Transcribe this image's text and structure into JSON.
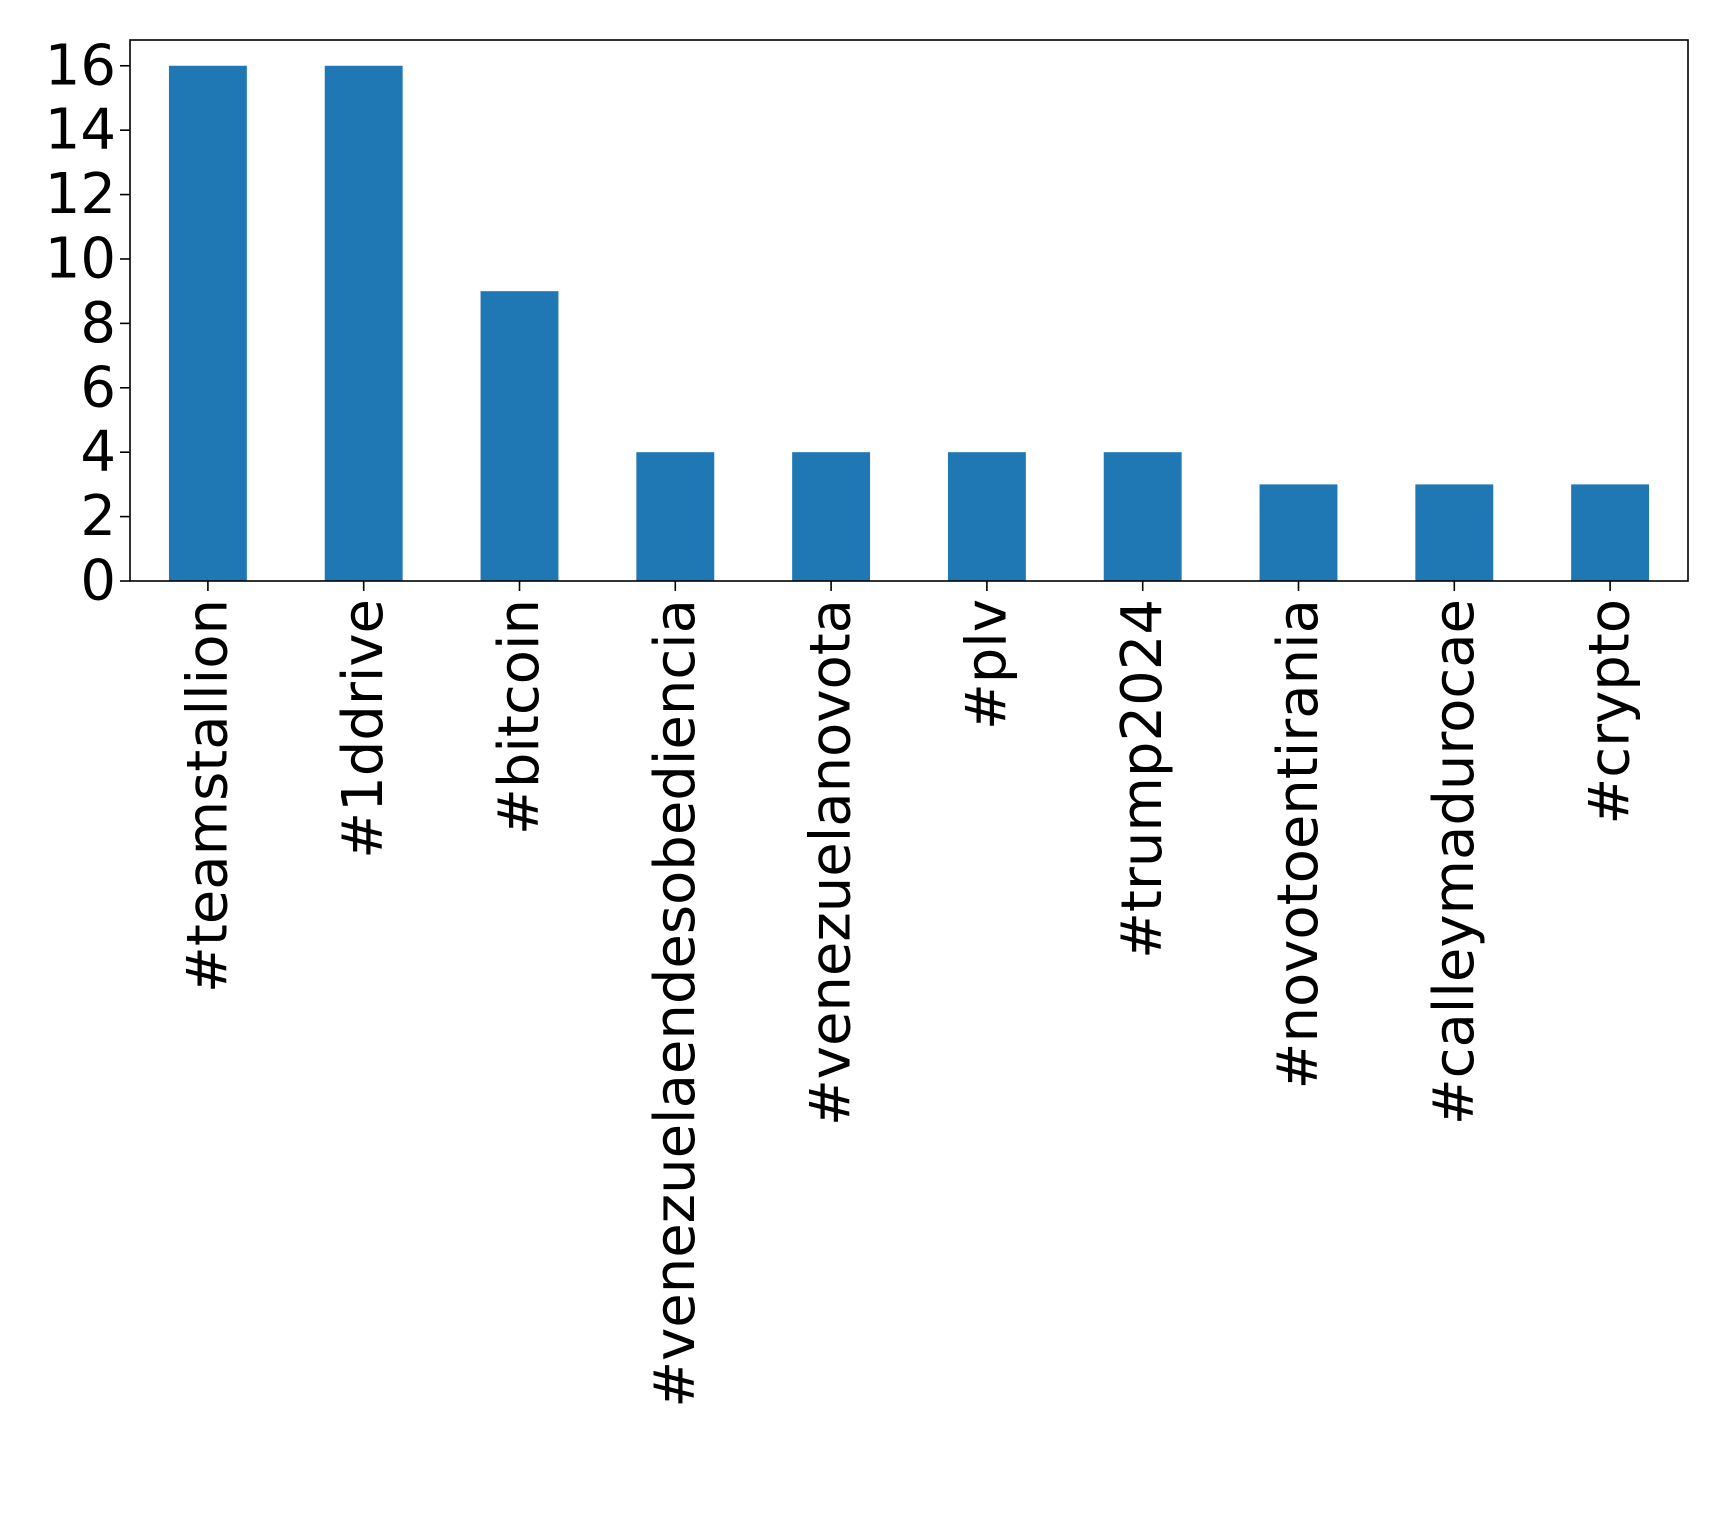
{
  "chart_data": {
    "type": "bar",
    "categories": [
      "#teamstallion",
      "#1ddrive",
      "#bitcoin",
      "#venezuelaendesobediencia",
      "#venezuelanovota",
      "#plv",
      "#trump2024",
      "#novotoentirania",
      "#calleymadurocae",
      "#crypto"
    ],
    "values": [
      16,
      16,
      9,
      4,
      4,
      4,
      4,
      3,
      3,
      3
    ],
    "title": "",
    "xlabel": "",
    "ylabel": "",
    "ylim": [
      0,
      16.8
    ],
    "yticks": [
      "0",
      "2",
      "4",
      "6",
      "8",
      "10",
      "12",
      "14",
      "16"
    ],
    "grid": false,
    "legend": "none",
    "colors": {
      "bar": "#1f77b4",
      "axis": "#000000",
      "background": "#ffffff"
    }
  }
}
